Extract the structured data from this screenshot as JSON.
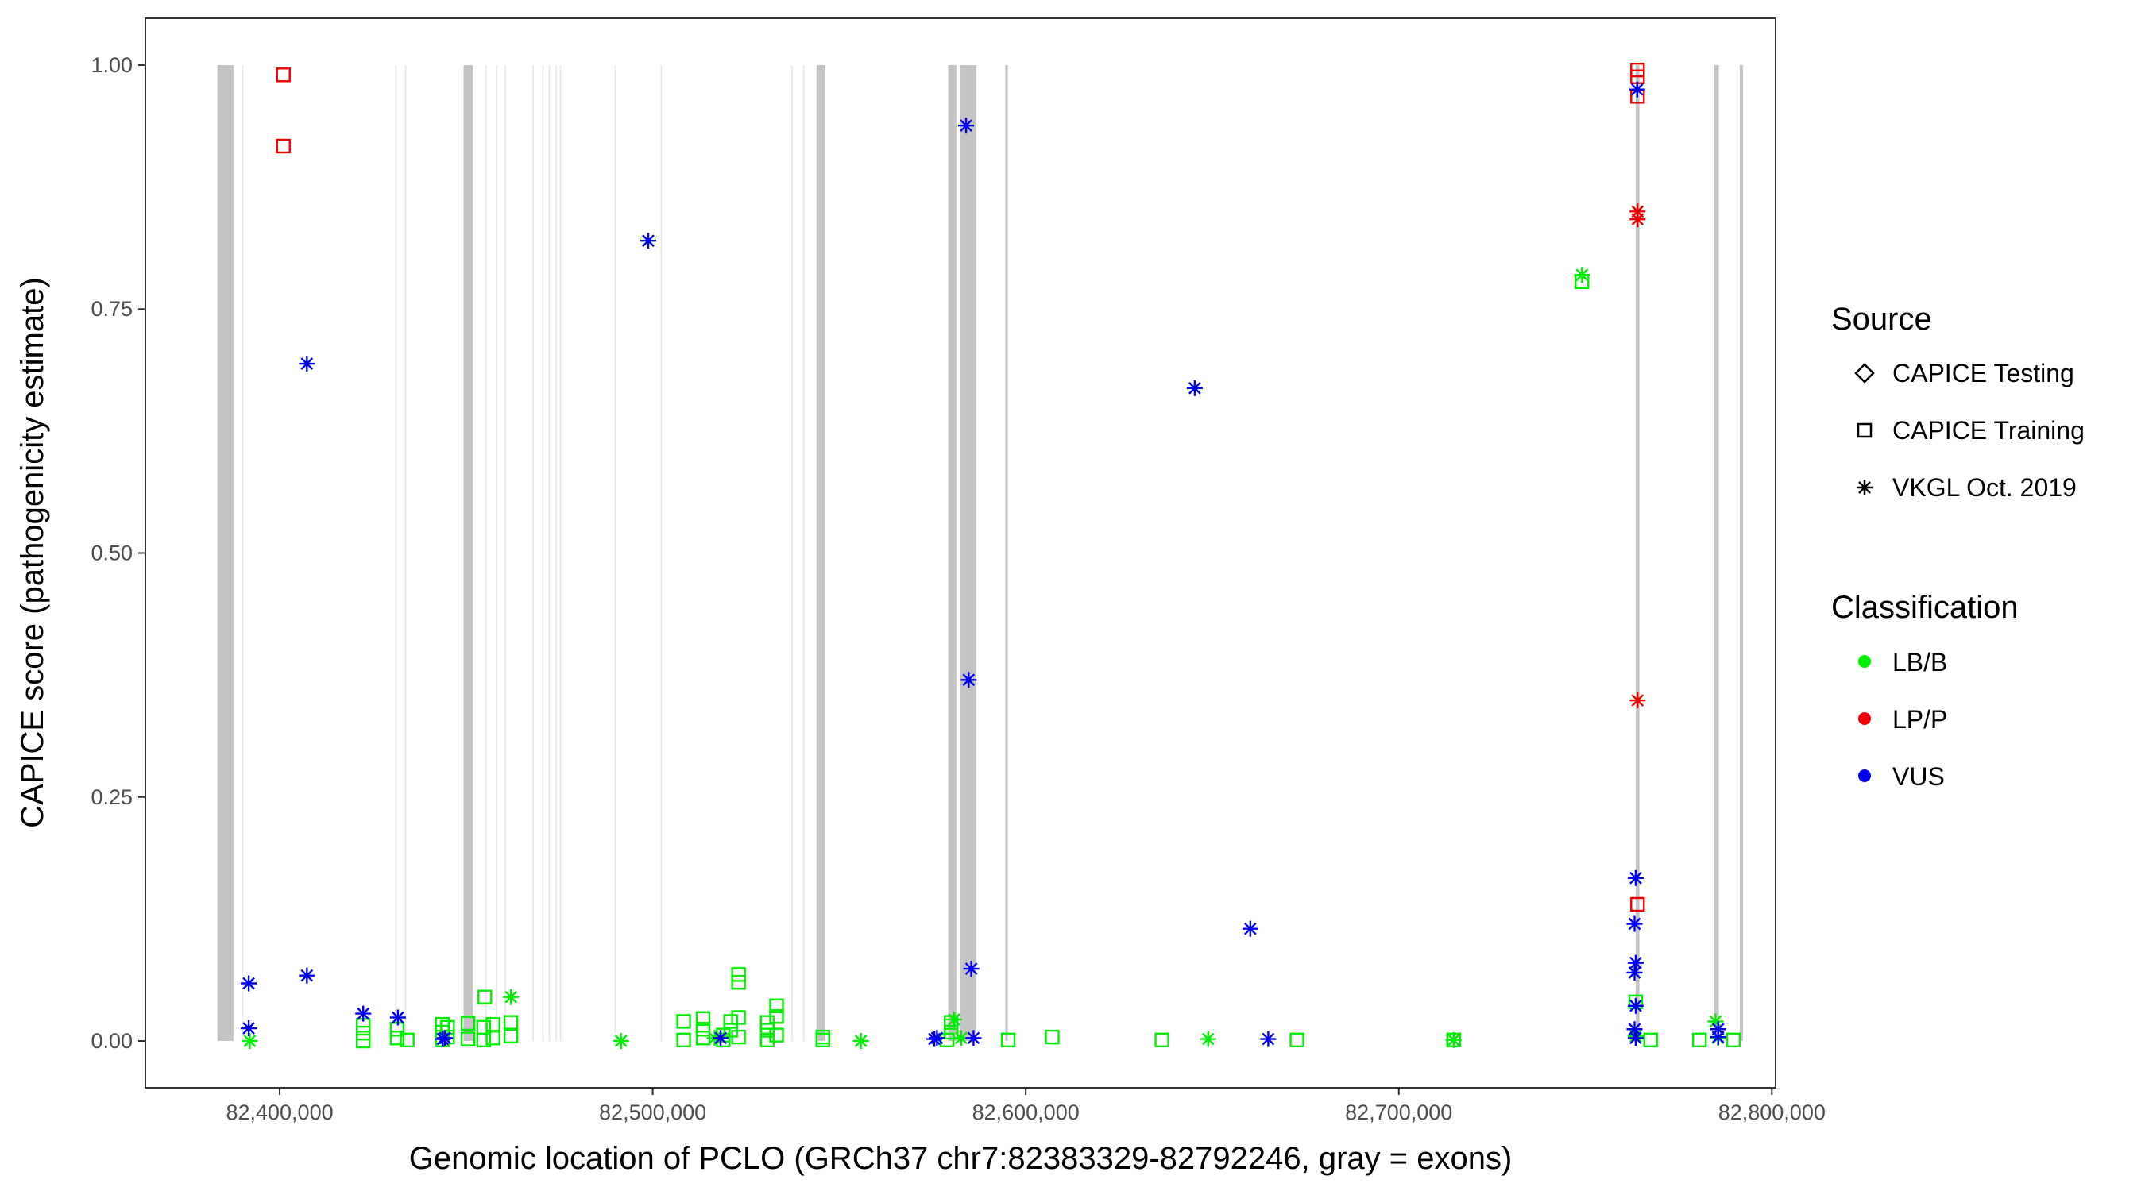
{
  "chart_data": {
    "type": "scatter",
    "xlabel": "Genomic location of PCLO (GRCh37 chr7:82383329-82792246, gray = exons)",
    "ylabel": "CAPICE score (pathogenicity estimate)",
    "xlim": [
      82364000,
      82801000
    ],
    "ylim": [
      -0.048,
      1.048
    ],
    "x_ticks": [
      82400000,
      82500000,
      82600000,
      82700000,
      82800000
    ],
    "x_tick_labels": [
      "82,400,000",
      "82,500,000",
      "82,600,000",
      "82,700,000",
      "82,800,000"
    ],
    "y_ticks": [
      0,
      0.25,
      0.5,
      0.75,
      1.0
    ],
    "y_tick_labels": [
      "0.00",
      "0.25",
      "0.50",
      "0.75",
      "1.00"
    ],
    "grid": false,
    "exons": [
      {
        "start": 82383329,
        "end": 82387600,
        "style": "dark"
      },
      {
        "start": 82389900,
        "end": 82390200,
        "style": "light"
      },
      {
        "start": 82431000,
        "end": 82431300,
        "style": "light"
      },
      {
        "start": 82433600,
        "end": 82433900,
        "style": "light"
      },
      {
        "start": 82449300,
        "end": 82451800,
        "style": "dark"
      },
      {
        "start": 82455100,
        "end": 82455400,
        "style": "light"
      },
      {
        "start": 82458000,
        "end": 82458300,
        "style": "light"
      },
      {
        "start": 82460300,
        "end": 82460600,
        "style": "light"
      },
      {
        "start": 82467800,
        "end": 82468100,
        "style": "light"
      },
      {
        "start": 82470400,
        "end": 82470700,
        "style": "light"
      },
      {
        "start": 82472100,
        "end": 82472400,
        "style": "light"
      },
      {
        "start": 82473900,
        "end": 82474200,
        "style": "light"
      },
      {
        "start": 82475100,
        "end": 82475400,
        "style": "light"
      },
      {
        "start": 82489800,
        "end": 82490100,
        "style": "light"
      },
      {
        "start": 82502100,
        "end": 82502400,
        "style": "light"
      },
      {
        "start": 82537200,
        "end": 82537500,
        "style": "light"
      },
      {
        "start": 82540300,
        "end": 82540600,
        "style": "light"
      },
      {
        "start": 82543900,
        "end": 82546300,
        "style": "dark"
      },
      {
        "start": 82579200,
        "end": 82581400,
        "style": "dark"
      },
      {
        "start": 82582300,
        "end": 82586700,
        "style": "dark"
      },
      {
        "start": 82594500,
        "end": 82595200,
        "style": "dark"
      },
      {
        "start": 82763500,
        "end": 82764500,
        "style": "dark"
      },
      {
        "start": 82784600,
        "end": 82785800,
        "style": "dark"
      },
      {
        "start": 82791400,
        "end": 82792246,
        "style": "dark"
      }
    ],
    "series": [
      {
        "name": "LB/B",
        "color": "#00ee00",
        "source": "CAPICE Training",
        "points": [
          [
            82422400,
            0.0
          ],
          [
            82422400,
            0.008
          ],
          [
            82422400,
            0.016
          ],
          [
            82431500,
            0.003
          ],
          [
            82431500,
            0.012
          ],
          [
            82434200,
            0.001
          ],
          [
            82443600,
            0.001
          ],
          [
            82443600,
            0.009
          ],
          [
            82443600,
            0.017
          ],
          [
            82445000,
            0.004
          ],
          [
            82445000,
            0.014
          ],
          [
            82450500,
            0.002
          ],
          [
            82450500,
            0.018
          ],
          [
            82454700,
            0.001
          ],
          [
            82454700,
            0.014
          ],
          [
            82455000,
            0.045
          ],
          [
            82457200,
            0.003
          ],
          [
            82457200,
            0.017
          ],
          [
            82462000,
            0.005
          ],
          [
            82462000,
            0.019
          ],
          [
            82508300,
            0.001
          ],
          [
            82508300,
            0.02
          ],
          [
            82513500,
            0.003
          ],
          [
            82513500,
            0.012
          ],
          [
            82513500,
            0.023
          ],
          [
            82518900,
            0.001
          ],
          [
            82518900,
            0.006
          ],
          [
            82520900,
            0.011
          ],
          [
            82520900,
            0.02
          ],
          [
            82523000,
            0.004
          ],
          [
            82523000,
            0.024
          ],
          [
            82523000,
            0.06
          ],
          [
            82523000,
            0.068
          ],
          [
            82530700,
            0.001
          ],
          [
            82530700,
            0.011
          ],
          [
            82530700,
            0.019
          ],
          [
            82533200,
            0.006
          ],
          [
            82533200,
            0.025
          ],
          [
            82533200,
            0.036
          ],
          [
            82545600,
            0.001
          ],
          [
            82545600,
            0.004
          ],
          [
            82578900,
            0.001
          ],
          [
            82580000,
            0.009
          ],
          [
            82580000,
            0.019
          ],
          [
            82595300,
            0.001
          ],
          [
            82607100,
            0.004
          ],
          [
            82636500,
            0.001
          ],
          [
            82672700,
            0.001
          ],
          [
            82714700,
            0.001
          ],
          [
            82749100,
            0.778
          ],
          [
            82763500,
            0.04
          ],
          [
            82767500,
            0.001
          ],
          [
            82780600,
            0.001
          ],
          [
            82789700,
            0.001
          ]
        ]
      },
      {
        "name": "LB/B",
        "color": "#00ee00",
        "source": "VKGL Oct. 2019",
        "points": [
          [
            82392000,
            0.0
          ],
          [
            82462000,
            0.045
          ],
          [
            82491500,
            0.0
          ],
          [
            82516600,
            0.003
          ],
          [
            82555800,
            0.0
          ],
          [
            82580800,
            0.022
          ],
          [
            82582700,
            0.003
          ],
          [
            82648900,
            0.002
          ],
          [
            82714700,
            0.001
          ],
          [
            82749100,
            0.785
          ],
          [
            82763500,
            0.005
          ],
          [
            82784900,
            0.02
          ],
          [
            82785600,
            0.003
          ]
        ]
      },
      {
        "name": "LP/P",
        "color": "#ee0000",
        "source": "CAPICE Training",
        "points": [
          [
            82401000,
            0.99
          ],
          [
            82401000,
            0.917
          ],
          [
            82764000,
            0.995
          ],
          [
            82764000,
            0.988
          ],
          [
            82764000,
            0.968
          ],
          [
            82764000,
            0.14
          ]
        ]
      },
      {
        "name": "LP/P",
        "color": "#ee0000",
        "source": "VKGL Oct. 2019",
        "points": [
          [
            82764000,
            0.85
          ],
          [
            82764000,
            0.842
          ],
          [
            82764000,
            0.349
          ]
        ]
      },
      {
        "name": "VUS",
        "color": "#0000ee",
        "source": "VKGL Oct. 2019",
        "points": [
          [
            82391700,
            0.059
          ],
          [
            82391700,
            0.013
          ],
          [
            82407300,
            0.694
          ],
          [
            82407300,
            0.067
          ],
          [
            82422400,
            0.028
          ],
          [
            82431700,
            0.024
          ],
          [
            82443700,
            0.002
          ],
          [
            82444300,
            0.003
          ],
          [
            82498800,
            0.82
          ],
          [
            82518200,
            0.003
          ],
          [
            82575500,
            0.002
          ],
          [
            82576200,
            0.003
          ],
          [
            82584000,
            0.938
          ],
          [
            82584700,
            0.37
          ],
          [
            82585400,
            0.074
          ],
          [
            82586000,
            0.003
          ],
          [
            82645300,
            0.669
          ],
          [
            82660200,
            0.115
          ],
          [
            82665000,
            0.002
          ],
          [
            82763900,
            0.975
          ],
          [
            82763500,
            0.167
          ],
          [
            82763200,
            0.12
          ],
          [
            82763500,
            0.08
          ],
          [
            82763200,
            0.07
          ],
          [
            82763500,
            0.036
          ],
          [
            82763200,
            0.012
          ],
          [
            82763500,
            0.003
          ],
          [
            82785600,
            0.012
          ],
          [
            82785600,
            0.004
          ]
        ]
      }
    ],
    "legend": {
      "placement": "right",
      "source_title": "Source",
      "source_items": [
        "CAPICE Testing",
        "CAPICE Training",
        "VKGL Oct. 2019"
      ],
      "classification_title": "Classification",
      "classification_items": [
        {
          "label": "LB/B",
          "color": "#00ee00"
        },
        {
          "label": "LP/P",
          "color": "#ee0000"
        },
        {
          "label": "VUS",
          "color": "#0000ee"
        }
      ]
    }
  }
}
